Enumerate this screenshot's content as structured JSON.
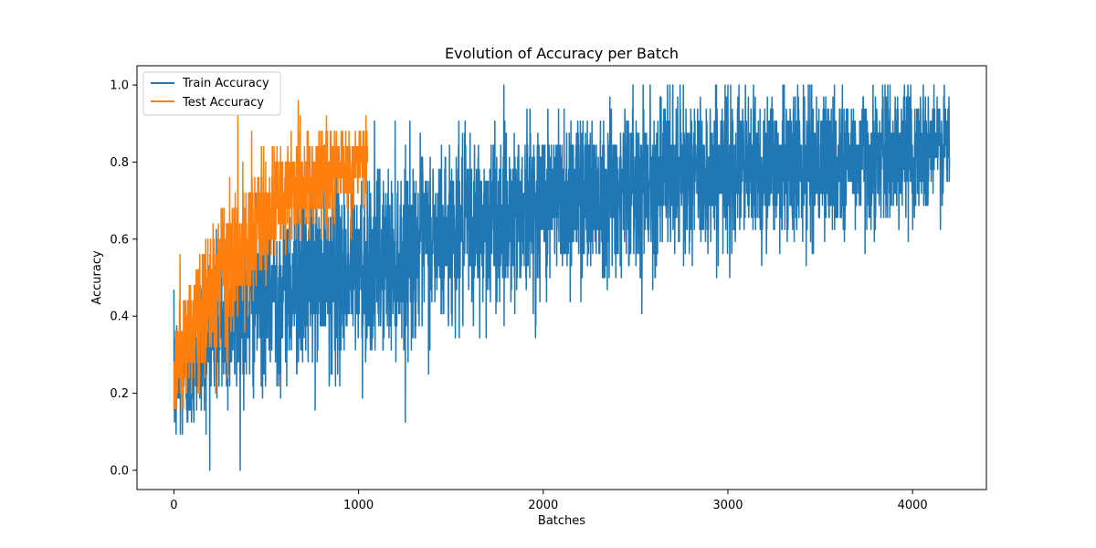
{
  "chart_data": {
    "type": "line",
    "title": "Evolution of Accuracy per Batch",
    "xlabel": "Batches",
    "ylabel": "Accuracy",
    "xlim": [
      -200,
      4400
    ],
    "ylim": [
      -0.05,
      1.05
    ],
    "xticks": [
      0,
      1000,
      2000,
      3000,
      4000
    ],
    "xtick_labels": [
      "0",
      "1000",
      "2000",
      "3000",
      "4000"
    ],
    "yticks": [
      0.0,
      0.2,
      0.4,
      0.6,
      0.8,
      1.0
    ],
    "ytick_labels": [
      "0.0",
      "0.2",
      "0.4",
      "0.6",
      "0.8",
      "1.0"
    ],
    "grid": false,
    "legend_position": "upper-left",
    "series": [
      {
        "name": "Train Accuracy",
        "color": "#1f77b4",
        "x_range": [
          0,
          4200
        ],
        "trend_x": [
          0,
          50,
          150,
          300,
          500,
          800,
          1000,
          1300,
          1600,
          2000,
          2400,
          3000,
          3600,
          4200
        ],
        "trend_y": [
          0.22,
          0.26,
          0.33,
          0.4,
          0.46,
          0.5,
          0.52,
          0.58,
          0.63,
          0.7,
          0.74,
          0.78,
          0.8,
          0.84
        ],
        "noise_x": [
          0,
          300,
          1000,
          2000,
          3000,
          4200
        ],
        "noise_y": [
          0.09,
          0.11,
          0.12,
          0.11,
          0.1,
          0.08
        ],
        "step": 0.03125,
        "value_bounds": [
          0.0,
          1.0
        ]
      },
      {
        "name": "Test Accuracy",
        "color": "#ff7f0e",
        "x_range": [
          0,
          1050
        ],
        "trend_x": [
          0,
          50,
          150,
          300,
          500,
          700,
          900,
          1050
        ],
        "trend_y": [
          0.24,
          0.32,
          0.42,
          0.52,
          0.66,
          0.74,
          0.78,
          0.8
        ],
        "noise_x": [
          0,
          300,
          700,
          1050
        ],
        "noise_y": [
          0.08,
          0.09,
          0.07,
          0.06
        ],
        "step": 0.04,
        "value_bounds": [
          0.16,
          0.96
        ]
      }
    ]
  }
}
